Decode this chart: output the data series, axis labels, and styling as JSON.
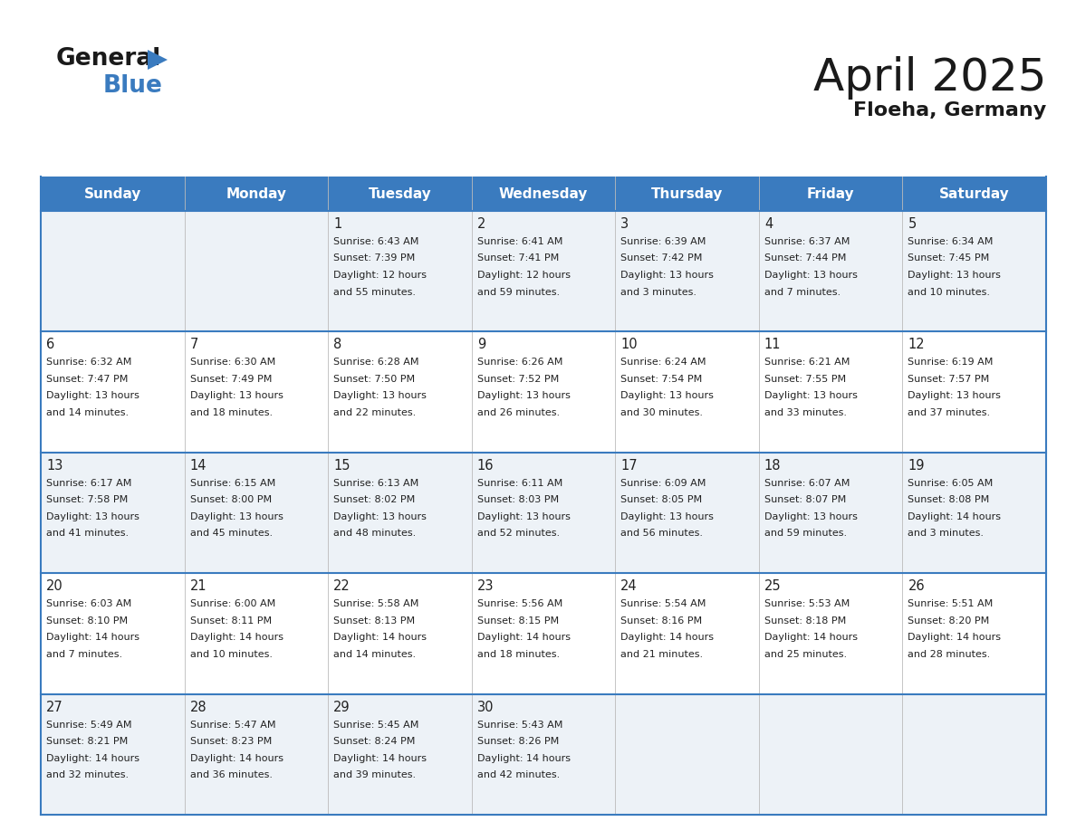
{
  "title": "April 2025",
  "subtitle": "Floeha, Germany",
  "header_color": "#3a7bbf",
  "header_text_color": "#ffffff",
  "cell_bg_even": "#edf2f7",
  "cell_bg_odd": "#ffffff",
  "border_color": "#3a7bbf",
  "text_color": "#222222",
  "days_of_week": [
    "Sunday",
    "Monday",
    "Tuesday",
    "Wednesday",
    "Thursday",
    "Friday",
    "Saturday"
  ],
  "weeks": [
    [
      {
        "day": "",
        "sunrise": "",
        "sunset": "",
        "daylight": ""
      },
      {
        "day": "",
        "sunrise": "",
        "sunset": "",
        "daylight": ""
      },
      {
        "day": "1",
        "sunrise": "Sunrise: 6:43 AM",
        "sunset": "Sunset: 7:39 PM",
        "daylight": "Daylight: 12 hours\nand 55 minutes."
      },
      {
        "day": "2",
        "sunrise": "Sunrise: 6:41 AM",
        "sunset": "Sunset: 7:41 PM",
        "daylight": "Daylight: 12 hours\nand 59 minutes."
      },
      {
        "day": "3",
        "sunrise": "Sunrise: 6:39 AM",
        "sunset": "Sunset: 7:42 PM",
        "daylight": "Daylight: 13 hours\nand 3 minutes."
      },
      {
        "day": "4",
        "sunrise": "Sunrise: 6:37 AM",
        "sunset": "Sunset: 7:44 PM",
        "daylight": "Daylight: 13 hours\nand 7 minutes."
      },
      {
        "day": "5",
        "sunrise": "Sunrise: 6:34 AM",
        "sunset": "Sunset: 7:45 PM",
        "daylight": "Daylight: 13 hours\nand 10 minutes."
      }
    ],
    [
      {
        "day": "6",
        "sunrise": "Sunrise: 6:32 AM",
        "sunset": "Sunset: 7:47 PM",
        "daylight": "Daylight: 13 hours\nand 14 minutes."
      },
      {
        "day": "7",
        "sunrise": "Sunrise: 6:30 AM",
        "sunset": "Sunset: 7:49 PM",
        "daylight": "Daylight: 13 hours\nand 18 minutes."
      },
      {
        "day": "8",
        "sunrise": "Sunrise: 6:28 AM",
        "sunset": "Sunset: 7:50 PM",
        "daylight": "Daylight: 13 hours\nand 22 minutes."
      },
      {
        "day": "9",
        "sunrise": "Sunrise: 6:26 AM",
        "sunset": "Sunset: 7:52 PM",
        "daylight": "Daylight: 13 hours\nand 26 minutes."
      },
      {
        "day": "10",
        "sunrise": "Sunrise: 6:24 AM",
        "sunset": "Sunset: 7:54 PM",
        "daylight": "Daylight: 13 hours\nand 30 minutes."
      },
      {
        "day": "11",
        "sunrise": "Sunrise: 6:21 AM",
        "sunset": "Sunset: 7:55 PM",
        "daylight": "Daylight: 13 hours\nand 33 minutes."
      },
      {
        "day": "12",
        "sunrise": "Sunrise: 6:19 AM",
        "sunset": "Sunset: 7:57 PM",
        "daylight": "Daylight: 13 hours\nand 37 minutes."
      }
    ],
    [
      {
        "day": "13",
        "sunrise": "Sunrise: 6:17 AM",
        "sunset": "Sunset: 7:58 PM",
        "daylight": "Daylight: 13 hours\nand 41 minutes."
      },
      {
        "day": "14",
        "sunrise": "Sunrise: 6:15 AM",
        "sunset": "Sunset: 8:00 PM",
        "daylight": "Daylight: 13 hours\nand 45 minutes."
      },
      {
        "day": "15",
        "sunrise": "Sunrise: 6:13 AM",
        "sunset": "Sunset: 8:02 PM",
        "daylight": "Daylight: 13 hours\nand 48 minutes."
      },
      {
        "day": "16",
        "sunrise": "Sunrise: 6:11 AM",
        "sunset": "Sunset: 8:03 PM",
        "daylight": "Daylight: 13 hours\nand 52 minutes."
      },
      {
        "day": "17",
        "sunrise": "Sunrise: 6:09 AM",
        "sunset": "Sunset: 8:05 PM",
        "daylight": "Daylight: 13 hours\nand 56 minutes."
      },
      {
        "day": "18",
        "sunrise": "Sunrise: 6:07 AM",
        "sunset": "Sunset: 8:07 PM",
        "daylight": "Daylight: 13 hours\nand 59 minutes."
      },
      {
        "day": "19",
        "sunrise": "Sunrise: 6:05 AM",
        "sunset": "Sunset: 8:08 PM",
        "daylight": "Daylight: 14 hours\nand 3 minutes."
      }
    ],
    [
      {
        "day": "20",
        "sunrise": "Sunrise: 6:03 AM",
        "sunset": "Sunset: 8:10 PM",
        "daylight": "Daylight: 14 hours\nand 7 minutes."
      },
      {
        "day": "21",
        "sunrise": "Sunrise: 6:00 AM",
        "sunset": "Sunset: 8:11 PM",
        "daylight": "Daylight: 14 hours\nand 10 minutes."
      },
      {
        "day": "22",
        "sunrise": "Sunrise: 5:58 AM",
        "sunset": "Sunset: 8:13 PM",
        "daylight": "Daylight: 14 hours\nand 14 minutes."
      },
      {
        "day": "23",
        "sunrise": "Sunrise: 5:56 AM",
        "sunset": "Sunset: 8:15 PM",
        "daylight": "Daylight: 14 hours\nand 18 minutes."
      },
      {
        "day": "24",
        "sunrise": "Sunrise: 5:54 AM",
        "sunset": "Sunset: 8:16 PM",
        "daylight": "Daylight: 14 hours\nand 21 minutes."
      },
      {
        "day": "25",
        "sunrise": "Sunrise: 5:53 AM",
        "sunset": "Sunset: 8:18 PM",
        "daylight": "Daylight: 14 hours\nand 25 minutes."
      },
      {
        "day": "26",
        "sunrise": "Sunrise: 5:51 AM",
        "sunset": "Sunset: 8:20 PM",
        "daylight": "Daylight: 14 hours\nand 28 minutes."
      }
    ],
    [
      {
        "day": "27",
        "sunrise": "Sunrise: 5:49 AM",
        "sunset": "Sunset: 8:21 PM",
        "daylight": "Daylight: 14 hours\nand 32 minutes."
      },
      {
        "day": "28",
        "sunrise": "Sunrise: 5:47 AM",
        "sunset": "Sunset: 8:23 PM",
        "daylight": "Daylight: 14 hours\nand 36 minutes."
      },
      {
        "day": "29",
        "sunrise": "Sunrise: 5:45 AM",
        "sunset": "Sunset: 8:24 PM",
        "daylight": "Daylight: 14 hours\nand 39 minutes."
      },
      {
        "day": "30",
        "sunrise": "Sunrise: 5:43 AM",
        "sunset": "Sunset: 8:26 PM",
        "daylight": "Daylight: 14 hours\nand 42 minutes."
      },
      {
        "day": "",
        "sunrise": "",
        "sunset": "",
        "daylight": ""
      },
      {
        "day": "",
        "sunrise": "",
        "sunset": "",
        "daylight": ""
      },
      {
        "day": "",
        "sunrise": "",
        "sunset": "",
        "daylight": ""
      }
    ]
  ]
}
